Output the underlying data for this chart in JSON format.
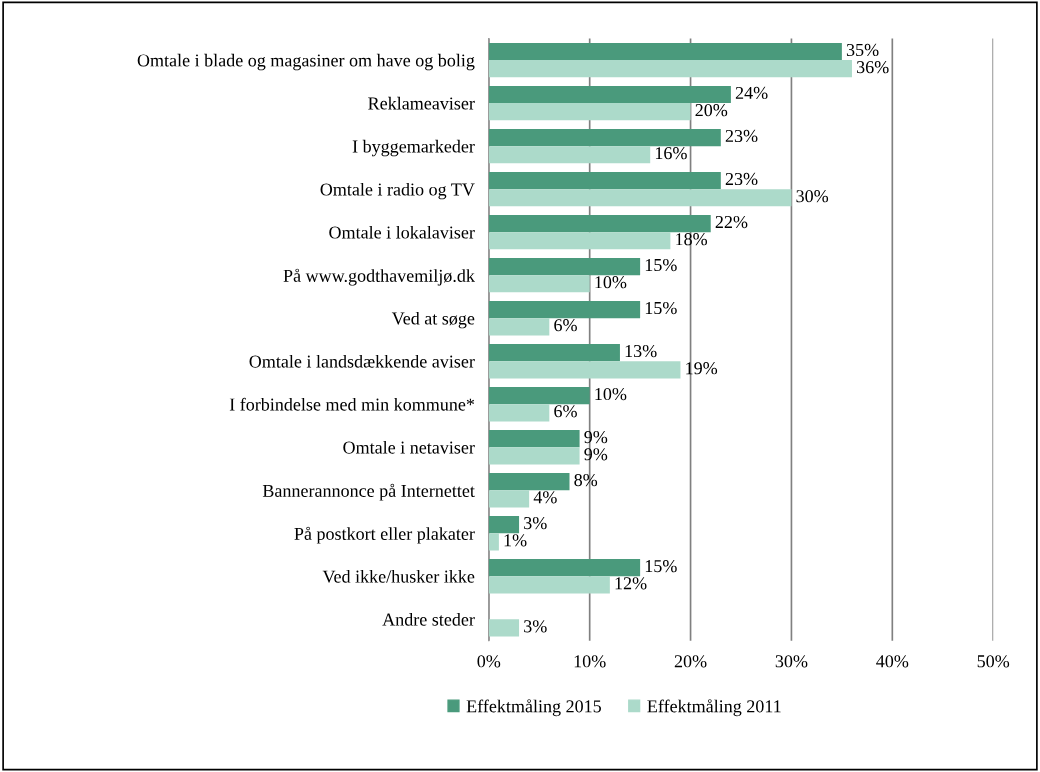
{
  "chart_data": {
    "type": "bar",
    "orientation": "horizontal",
    "categories": [
      "Omtale i blade og magasiner om have og bolig",
      "Reklameaviser",
      "I byggemarkeder",
      "Omtale i radio og TV",
      "Omtale i lokalaviser",
      "På www.godthavemiljø.dk",
      "Ved at søge",
      "Omtale i landsdækkende aviser",
      "I forbindelse med min kommune*",
      "Omtale i netaviser",
      "Bannerannonce på Internettet",
      "På postkort eller plakater",
      "Ved ikke/husker ikke",
      "Andre steder"
    ],
    "series": [
      {
        "name": "Effektmåling 2015",
        "color": "#4a9a7c",
        "values": [
          35,
          24,
          23,
          23,
          22,
          15,
          15,
          13,
          10,
          9,
          8,
          3,
          15,
          null
        ],
        "value_labels": [
          "35%",
          "24%",
          "23%",
          "23%",
          "22%",
          "15%",
          "15%",
          "13%",
          "10%",
          "9%",
          "8%",
          "3%",
          "15%",
          null
        ]
      },
      {
        "name": "Effektmåling 2011",
        "color": "#acdaca",
        "values": [
          36,
          20,
          16,
          30,
          18,
          10,
          6,
          19,
          6,
          9,
          4,
          1,
          12,
          3
        ],
        "value_labels": [
          "36%",
          "20%",
          "16%",
          "30%",
          "18%",
          "10%",
          "6%",
          "19%",
          "6%",
          "9%",
          "4%",
          "1%",
          "12%",
          "3%"
        ]
      }
    ],
    "xlim": [
      0,
      50
    ],
    "xticks": [
      {
        "value": 0,
        "label": "0%"
      },
      {
        "value": 10,
        "label": "10%"
      },
      {
        "value": 20,
        "label": "20%"
      },
      {
        "value": 30,
        "label": "30%"
      },
      {
        "value": 40,
        "label": "40%"
      },
      {
        "value": 50,
        "label": "50%"
      }
    ],
    "grid": "x",
    "legend": "bottom"
  }
}
